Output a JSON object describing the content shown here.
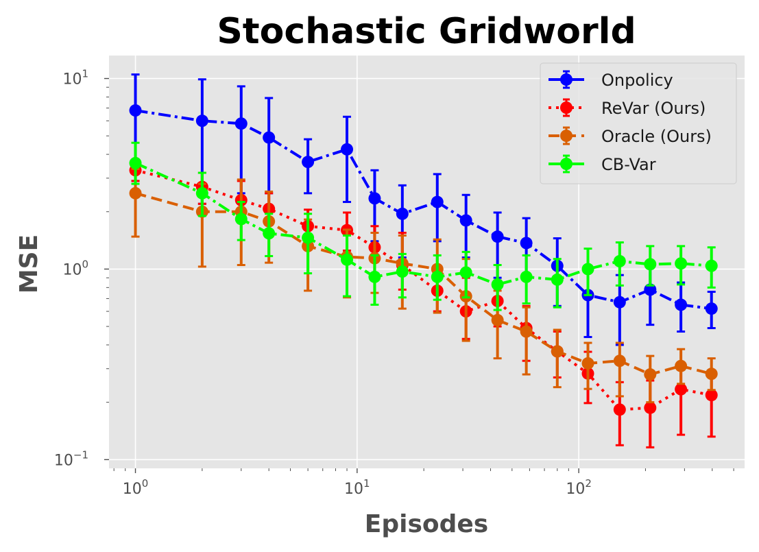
{
  "chart_data": {
    "type": "line",
    "title": "Stochastic Gridworld",
    "xlabel": "Episodes",
    "ylabel": "MSE",
    "xscale": "log",
    "yscale": "log",
    "xlim": [
      0.76,
      560
    ],
    "ylim": [
      0.09,
      13.2
    ],
    "xticks": [
      {
        "value": 1,
        "base": "10",
        "exp": "0"
      },
      {
        "value": 10,
        "base": "10",
        "exp": "1"
      },
      {
        "value": 100,
        "base": "10",
        "exp": "2"
      }
    ],
    "yticks": [
      {
        "value": 0.1,
        "base": "10",
        "exp": "−1"
      },
      {
        "value": 1,
        "base": "10",
        "exp": "0"
      },
      {
        "value": 10,
        "base": "10",
        "exp": "1"
      }
    ],
    "grid": true,
    "legend_position": "top-right",
    "x": [
      1,
      2,
      3,
      4,
      6,
      9,
      12,
      16,
      23,
      31,
      43,
      58,
      80,
      110,
      153,
      210,
      289,
      397
    ],
    "series": [
      {
        "name": "Onpolicy",
        "color": "#0000ff",
        "linestyle": "dashdot",
        "values": [
          6.8,
          6.0,
          5.8,
          4.9,
          3.65,
          4.25,
          2.35,
          1.95,
          2.25,
          1.8,
          1.48,
          1.37,
          1.04,
          0.73,
          0.67,
          0.78,
          0.65,
          0.62
        ],
        "lower": [
          2.9,
          2.2,
          2.5,
          2.5,
          2.5,
          2.25,
          1.4,
          1.15,
          1.4,
          1.15,
          0.9,
          0.92,
          0.64,
          0.44,
          0.4,
          0.51,
          0.47,
          0.49
        ],
        "upper": [
          10.5,
          9.9,
          9.1,
          7.9,
          4.8,
          6.3,
          3.3,
          2.75,
          3.15,
          2.45,
          1.98,
          1.85,
          1.45,
          1.0,
          0.93,
          1.05,
          0.85,
          0.76
        ]
      },
      {
        "name": "ReVar (Ours)",
        "color": "#ff0000",
        "linestyle": "dotted",
        "values": [
          3.3,
          2.7,
          2.3,
          2.07,
          1.68,
          1.6,
          1.3,
          1.05,
          0.77,
          0.6,
          0.68,
          0.49,
          0.37,
          0.283,
          0.183,
          0.187,
          0.234,
          0.218
        ],
        "lower": [
          2.9,
          2.2,
          1.9,
          1.7,
          1.35,
          1.25,
          0.95,
          0.78,
          0.6,
          0.43,
          0.5,
          0.33,
          0.27,
          0.198,
          0.119,
          0.116,
          0.135,
          0.132
        ],
        "upper": [
          3.65,
          3.2,
          2.9,
          2.5,
          2.05,
          1.98,
          1.68,
          1.55,
          1.0,
          0.9,
          0.87,
          0.64,
          0.47,
          0.368,
          0.255,
          0.26,
          0.31,
          0.29
        ]
      },
      {
        "name": "Oracle (Ours)",
        "color": "#d95f02",
        "linestyle": "dashed",
        "values": [
          2.5,
          2.0,
          2.0,
          1.78,
          1.32,
          1.16,
          1.14,
          1.07,
          1.0,
          0.72,
          0.54,
          0.47,
          0.37,
          0.32,
          0.33,
          0.28,
          0.31,
          0.282
        ],
        "lower": [
          1.48,
          1.03,
          1.05,
          1.08,
          0.77,
          0.71,
          0.75,
          0.62,
          0.59,
          0.42,
          0.34,
          0.28,
          0.24,
          0.235,
          0.215,
          0.2,
          0.25,
          0.232
        ],
        "upper": [
          3.35,
          2.8,
          2.95,
          2.55,
          1.82,
          1.61,
          1.55,
          1.5,
          1.43,
          1.13,
          0.77,
          0.63,
          0.48,
          0.41,
          0.41,
          0.35,
          0.38,
          0.34
        ]
      },
      {
        "name": "CB-Var",
        "color": "#00ff00",
        "linestyle": "dashdot",
        "values": [
          3.6,
          2.5,
          1.83,
          1.54,
          1.46,
          1.12,
          0.91,
          0.97,
          0.91,
          0.96,
          0.83,
          0.91,
          0.88,
          1.0,
          1.1,
          1.06,
          1.07,
          1.04
        ],
        "lower": [
          2.8,
          1.9,
          1.42,
          1.17,
          0.95,
          0.72,
          0.65,
          0.71,
          0.69,
          0.71,
          0.61,
          0.66,
          0.63,
          0.73,
          0.82,
          0.82,
          0.83,
          0.8
        ],
        "upper": [
          4.6,
          3.2,
          2.25,
          1.95,
          1.95,
          1.5,
          1.18,
          1.2,
          1.18,
          1.23,
          1.05,
          1.18,
          1.13,
          1.28,
          1.38,
          1.32,
          1.32,
          1.3
        ]
      }
    ]
  }
}
